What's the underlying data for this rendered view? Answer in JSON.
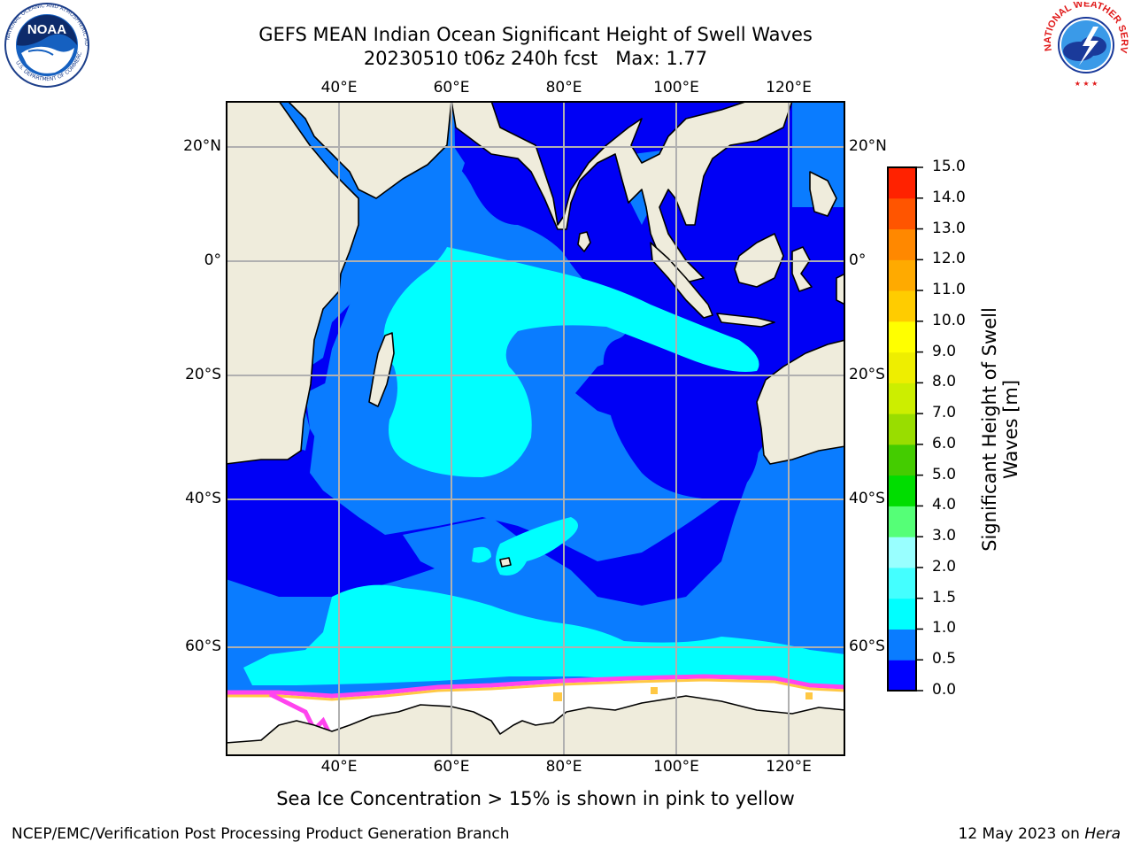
{
  "header": {
    "title_line1": "GEFS MEAN Indian Ocean Significant Height of Swell Waves",
    "title_line2": "20230510 t06z 240h fcst   Max: 1.77"
  },
  "logos": {
    "left": "noaa-logo",
    "right": "nws-logo"
  },
  "map": {
    "lon_labels": [
      "40°E",
      "60°E",
      "80°E",
      "100°E",
      "120°E"
    ],
    "lat_labels": [
      "20°N",
      "0°",
      "20°S",
      "40°S",
      "60°S"
    ],
    "colors": {
      "land": "#efecdc",
      "sea_ice": "#ffffff",
      "band_0_0p5": "#0000f5",
      "band_0p5_1": "#0a7cff",
      "band_1_1p5": "#00ffff",
      "ice_edge_pink": "#ff44ee",
      "ice_edge_yellow": "#ffc844",
      "grid": "#b0b0b0"
    }
  },
  "colorbar": {
    "title": "Significant Height of Swell\nWaves [m]",
    "levels": [
      "0.0",
      "0.5",
      "1.0",
      "1.5",
      "2.0",
      "3.0",
      "4.0",
      "5.0",
      "6.0",
      "7.0",
      "8.0",
      "9.0",
      "10.0",
      "11.0",
      "12.0",
      "13.0",
      "14.0",
      "15.0"
    ],
    "colors": [
      "#0000ff",
      "#0a7cff",
      "#00ffff",
      "#44ffff",
      "#99ffff",
      "#55ff77",
      "#00dd00",
      "#44cc00",
      "#99dd00",
      "#ccee00",
      "#eeee00",
      "#ffff00",
      "#ffcc00",
      "#ffaa00",
      "#ff8800",
      "#ff5500",
      "#ff2200"
    ]
  },
  "caption": "Sea Ice Concentration > 15% is shown in pink to yellow",
  "footer": {
    "left": "NCEP/EMC/Verification Post Processing Product Generation Branch",
    "right_date": "12 May 2023 on ",
    "right_machine": "Hera"
  }
}
